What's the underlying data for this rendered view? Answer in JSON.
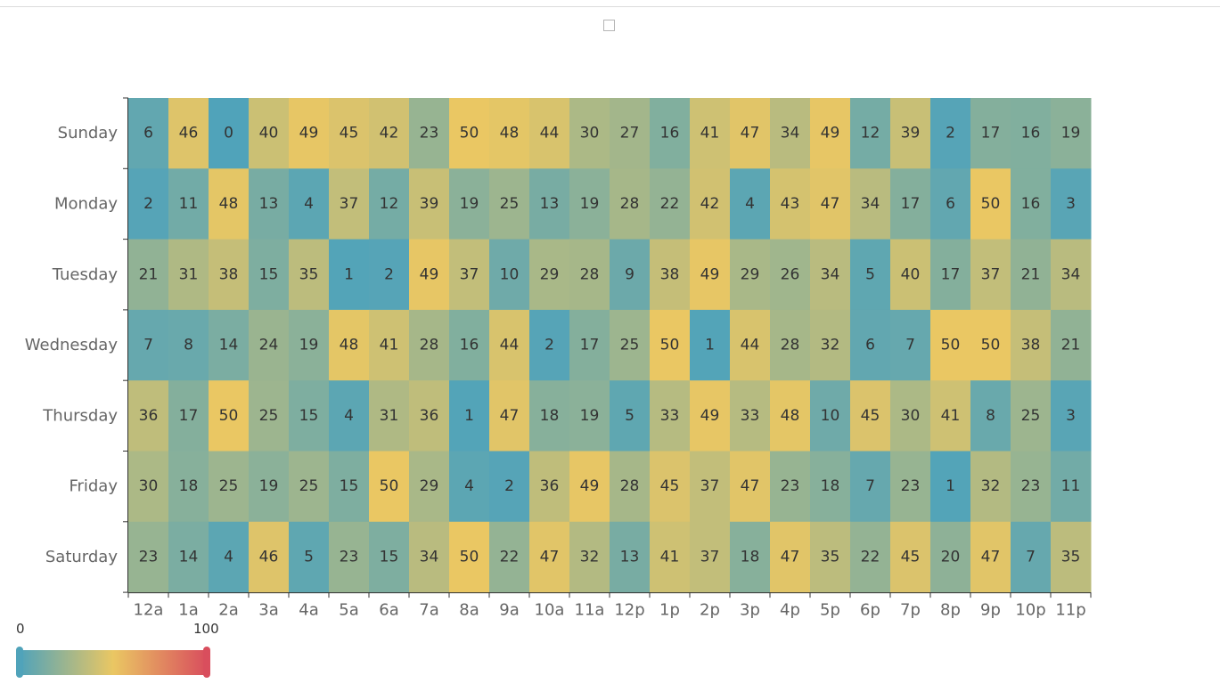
{
  "chart_data": {
    "type": "heatmap",
    "x_categories": [
      "12a",
      "1a",
      "2a",
      "3a",
      "4a",
      "5a",
      "6a",
      "7a",
      "8a",
      "9a",
      "10a",
      "11a",
      "12p",
      "1p",
      "2p",
      "3p",
      "4p",
      "5p",
      "6p",
      "7p",
      "8p",
      "9p",
      "10p",
      "11p"
    ],
    "y_categories": [
      "Sunday",
      "Monday",
      "Tuesday",
      "Wednesday",
      "Thursday",
      "Friday",
      "Saturday"
    ],
    "values": [
      [
        6,
        46,
        0,
        40,
        49,
        45,
        42,
        23,
        50,
        48,
        44,
        30,
        27,
        16,
        41,
        47,
        34,
        49,
        12,
        39,
        2,
        17,
        16,
        19
      ],
      [
        2,
        11,
        48,
        13,
        4,
        37,
        12,
        39,
        19,
        25,
        13,
        19,
        28,
        22,
        42,
        4,
        43,
        47,
        34,
        17,
        6,
        50,
        16,
        3
      ],
      [
        21,
        31,
        38,
        15,
        35,
        1,
        2,
        49,
        37,
        10,
        29,
        28,
        9,
        38,
        49,
        29,
        26,
        34,
        5,
        40,
        17,
        37,
        21,
        34
      ],
      [
        7,
        8,
        14,
        24,
        19,
        48,
        41,
        28,
        16,
        44,
        2,
        17,
        25,
        50,
        1,
        44,
        28,
        32,
        6,
        7,
        50,
        50,
        38,
        21
      ],
      [
        36,
        17,
        50,
        25,
        15,
        4,
        31,
        36,
        1,
        47,
        18,
        19,
        5,
        33,
        49,
        33,
        48,
        10,
        45,
        30,
        41,
        8,
        25,
        3
      ],
      [
        30,
        18,
        25,
        19,
        25,
        15,
        50,
        29,
        4,
        2,
        36,
        49,
        28,
        45,
        37,
        47,
        23,
        18,
        7,
        23,
        1,
        32,
        23,
        11
      ],
      [
        23,
        14,
        4,
        46,
        5,
        23,
        15,
        34,
        50,
        22,
        47,
        32,
        13,
        41,
        37,
        18,
        47,
        35,
        22,
        45,
        20,
        47,
        7,
        35
      ]
    ],
    "color_stops": [
      "#50a3ba",
      "#eac763",
      "#d94e5d"
    ],
    "visual_map": {
      "min": 0,
      "max": 100,
      "min_label": "0",
      "max_label": "100"
    }
  }
}
